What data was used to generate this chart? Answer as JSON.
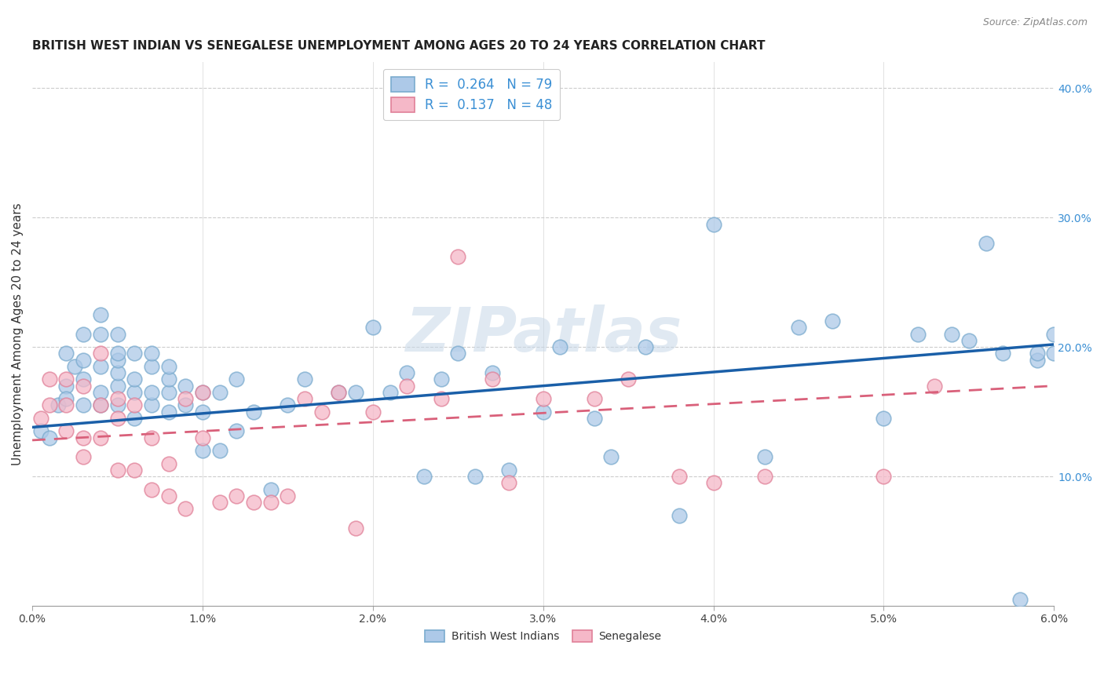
{
  "title": "BRITISH WEST INDIAN VS SENEGALESE UNEMPLOYMENT AMONG AGES 20 TO 24 YEARS CORRELATION CHART",
  "source": "Source: ZipAtlas.com",
  "ylabel": "Unemployment Among Ages 20 to 24 years",
  "ylabel_right_ticks": [
    "40.0%",
    "30.0%",
    "20.0%",
    "10.0%"
  ],
  "ylabel_right_vals": [
    0.4,
    0.3,
    0.2,
    0.1
  ],
  "xmin": 0.0,
  "xmax": 0.06,
  "ymin": 0.0,
  "ymax": 0.42,
  "legend_r1_val": "0.264",
  "legend_n1_val": "79",
  "legend_r2_val": "0.137",
  "legend_n2_val": "48",
  "blue_fill": "#adc9e8",
  "blue_edge": "#7aabce",
  "pink_fill": "#f5b8c8",
  "pink_edge": "#e08098",
  "line_blue": "#1a5fa8",
  "line_pink": "#d9607a",
  "watermark": "ZIPatlas",
  "blue_line_x0": 0.0,
  "blue_line_y0": 0.138,
  "blue_line_x1": 0.06,
  "blue_line_y1": 0.202,
  "pink_line_x0": 0.0,
  "pink_line_y0": 0.128,
  "pink_line_x1": 0.06,
  "pink_line_y1": 0.17,
  "blue_x": [
    0.0005,
    0.001,
    0.0015,
    0.002,
    0.002,
    0.002,
    0.0025,
    0.003,
    0.003,
    0.003,
    0.003,
    0.004,
    0.004,
    0.004,
    0.004,
    0.004,
    0.005,
    0.005,
    0.005,
    0.005,
    0.005,
    0.005,
    0.006,
    0.006,
    0.006,
    0.006,
    0.007,
    0.007,
    0.007,
    0.007,
    0.008,
    0.008,
    0.008,
    0.008,
    0.009,
    0.009,
    0.01,
    0.01,
    0.01,
    0.011,
    0.011,
    0.012,
    0.012,
    0.013,
    0.014,
    0.015,
    0.016,
    0.018,
    0.019,
    0.02,
    0.021,
    0.022,
    0.023,
    0.024,
    0.025,
    0.026,
    0.027,
    0.028,
    0.03,
    0.031,
    0.033,
    0.034,
    0.036,
    0.038,
    0.04,
    0.043,
    0.045,
    0.047,
    0.05,
    0.052,
    0.054,
    0.055,
    0.056,
    0.057,
    0.058,
    0.059,
    0.059,
    0.06,
    0.06
  ],
  "blue_y": [
    0.135,
    0.13,
    0.155,
    0.17,
    0.16,
    0.195,
    0.185,
    0.155,
    0.175,
    0.19,
    0.21,
    0.155,
    0.165,
    0.185,
    0.21,
    0.225,
    0.155,
    0.17,
    0.18,
    0.19,
    0.195,
    0.21,
    0.145,
    0.165,
    0.175,
    0.195,
    0.155,
    0.165,
    0.185,
    0.195,
    0.15,
    0.165,
    0.175,
    0.185,
    0.155,
    0.17,
    0.12,
    0.15,
    0.165,
    0.12,
    0.165,
    0.135,
    0.175,
    0.15,
    0.09,
    0.155,
    0.175,
    0.165,
    0.165,
    0.215,
    0.165,
    0.18,
    0.1,
    0.175,
    0.195,
    0.1,
    0.18,
    0.105,
    0.15,
    0.2,
    0.145,
    0.115,
    0.2,
    0.07,
    0.295,
    0.115,
    0.215,
    0.22,
    0.145,
    0.21,
    0.21,
    0.205,
    0.28,
    0.195,
    0.005,
    0.19,
    0.195,
    0.21,
    0.195
  ],
  "pink_x": [
    0.0005,
    0.001,
    0.001,
    0.002,
    0.002,
    0.002,
    0.003,
    0.003,
    0.003,
    0.004,
    0.004,
    0.004,
    0.005,
    0.005,
    0.005,
    0.006,
    0.006,
    0.007,
    0.007,
    0.008,
    0.008,
    0.009,
    0.009,
    0.01,
    0.01,
    0.011,
    0.012,
    0.013,
    0.014,
    0.015,
    0.016,
    0.017,
    0.018,
    0.019,
    0.02,
    0.022,
    0.024,
    0.025,
    0.027,
    0.028,
    0.03,
    0.033,
    0.035,
    0.038,
    0.04,
    0.043,
    0.05,
    0.053
  ],
  "pink_y": [
    0.145,
    0.155,
    0.175,
    0.135,
    0.155,
    0.175,
    0.115,
    0.13,
    0.17,
    0.13,
    0.155,
    0.195,
    0.105,
    0.145,
    0.16,
    0.105,
    0.155,
    0.09,
    0.13,
    0.085,
    0.11,
    0.075,
    0.16,
    0.13,
    0.165,
    0.08,
    0.085,
    0.08,
    0.08,
    0.085,
    0.16,
    0.15,
    0.165,
    0.06,
    0.15,
    0.17,
    0.16,
    0.27,
    0.175,
    0.095,
    0.16,
    0.16,
    0.175,
    0.1,
    0.095,
    0.1,
    0.1,
    0.17
  ]
}
